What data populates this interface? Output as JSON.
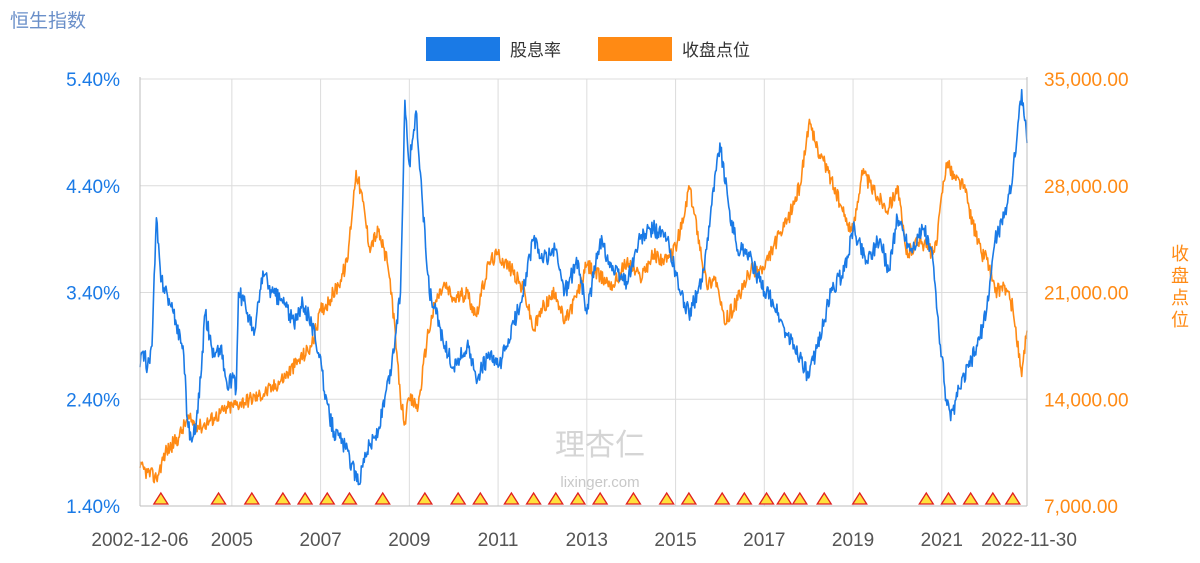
{
  "page_title": "恒生指数",
  "watermark": {
    "logo": "理杏仁",
    "site": "lixinger.com"
  },
  "colors": {
    "dividend": "#1a7ae6",
    "close": "#ff8a14",
    "grid": "#dcdcdc",
    "event_fill": "#ffe13c",
    "event_stroke": "#e02020"
  },
  "chart_data": {
    "type": "line",
    "x_tick_labels": [
      "2002-12-06",
      "2005",
      "2007",
      "2009",
      "2011",
      "2013",
      "2015",
      "2017",
      "2019",
      "2021",
      "2022-11-30"
    ],
    "x_tick_positions": [
      2002.93,
      2005,
      2007,
      2009,
      2011,
      2013,
      2015,
      2017,
      2019,
      2021,
      2022.92
    ],
    "x_range": [
      2002.93,
      2022.92
    ],
    "y_left": {
      "label": "股息率",
      "ticks": [
        "5.40%",
        "4.40%",
        "3.40%",
        "2.40%",
        "1.40%"
      ],
      "tick_values": [
        5.4,
        4.4,
        3.4,
        2.4,
        1.4
      ],
      "range": [
        1.4,
        5.4
      ]
    },
    "y_right": {
      "label": "收盘点位",
      "ticks": [
        "35,000.00",
        "28,000.00",
        "21,000.00",
        "14,000.00",
        "7,000.00"
      ],
      "tick_values": [
        35000,
        28000,
        21000,
        14000,
        7000
      ],
      "range": [
        7000,
        35000
      ]
    },
    "legend": {
      "placement": "top-center",
      "items": [
        "股息率",
        "收盘点位"
      ]
    },
    "series": [
      {
        "name": "股息率",
        "axis": "left",
        "points": [
          [
            2002.93,
            2.7
          ],
          [
            2003.0,
            2.85
          ],
          [
            2003.1,
            2.7
          ],
          [
            2003.2,
            2.9
          ],
          [
            2003.3,
            4.1
          ],
          [
            2003.4,
            3.5
          ],
          [
            2003.5,
            3.45
          ],
          [
            2003.6,
            3.3
          ],
          [
            2003.75,
            3.1
          ],
          [
            2003.9,
            2.9
          ],
          [
            2004.0,
            2.2
          ],
          [
            2004.1,
            2.0
          ],
          [
            2004.2,
            2.2
          ],
          [
            2004.3,
            2.6
          ],
          [
            2004.4,
            3.2
          ],
          [
            2004.5,
            3.0
          ],
          [
            2004.6,
            2.8
          ],
          [
            2004.75,
            2.9
          ],
          [
            2004.9,
            2.5
          ],
          [
            2005.0,
            2.6
          ],
          [
            2005.1,
            2.5
          ],
          [
            2005.15,
            3.4
          ],
          [
            2005.3,
            3.3
          ],
          [
            2005.5,
            3.0
          ],
          [
            2005.7,
            3.6
          ],
          [
            2005.9,
            3.4
          ],
          [
            2006.2,
            3.3
          ],
          [
            2006.4,
            3.1
          ],
          [
            2006.6,
            3.3
          ],
          [
            2006.8,
            3.1
          ],
          [
            2007.0,
            2.8
          ],
          [
            2007.1,
            2.4
          ],
          [
            2007.3,
            2.1
          ],
          [
            2007.5,
            2.0
          ],
          [
            2007.7,
            1.8
          ],
          [
            2007.85,
            1.6
          ],
          [
            2008.0,
            1.9
          ],
          [
            2008.3,
            2.1
          ],
          [
            2008.6,
            2.7
          ],
          [
            2008.8,
            3.4
          ],
          [
            2008.9,
            5.2
          ],
          [
            2009.0,
            4.6
          ],
          [
            2009.15,
            5.1
          ],
          [
            2009.3,
            4.2
          ],
          [
            2009.45,
            3.4
          ],
          [
            2009.6,
            3.2
          ],
          [
            2009.8,
            2.9
          ],
          [
            2010.0,
            2.7
          ],
          [
            2010.3,
            2.9
          ],
          [
            2010.5,
            2.6
          ],
          [
            2010.8,
            2.8
          ],
          [
            2011.0,
            2.7
          ],
          [
            2011.2,
            2.9
          ],
          [
            2011.5,
            3.3
          ],
          [
            2011.8,
            3.9
          ],
          [
            2012.0,
            3.7
          ],
          [
            2012.3,
            3.8
          ],
          [
            2012.5,
            3.4
          ],
          [
            2012.8,
            3.7
          ],
          [
            2013.0,
            3.2
          ],
          [
            2013.3,
            3.9
          ],
          [
            2013.6,
            3.6
          ],
          [
            2013.9,
            3.5
          ],
          [
            2014.2,
            3.9
          ],
          [
            2014.5,
            4.0
          ],
          [
            2014.8,
            3.9
          ],
          [
            2015.0,
            3.6
          ],
          [
            2015.1,
            3.4
          ],
          [
            2015.3,
            3.2
          ],
          [
            2015.6,
            3.5
          ],
          [
            2015.8,
            4.2
          ],
          [
            2016.0,
            4.8
          ],
          [
            2016.2,
            4.2
          ],
          [
            2016.4,
            3.8
          ],
          [
            2016.6,
            3.8
          ],
          [
            2016.9,
            3.5
          ],
          [
            2017.2,
            3.3
          ],
          [
            2017.5,
            3.0
          ],
          [
            2017.8,
            2.8
          ],
          [
            2018.0,
            2.6
          ],
          [
            2018.2,
            2.9
          ],
          [
            2018.5,
            3.4
          ],
          [
            2018.8,
            3.6
          ],
          [
            2019.0,
            4.0
          ],
          [
            2019.3,
            3.7
          ],
          [
            2019.6,
            3.9
          ],
          [
            2019.8,
            3.6
          ],
          [
            2020.0,
            4.1
          ],
          [
            2020.3,
            3.8
          ],
          [
            2020.6,
            4.0
          ],
          [
            2020.8,
            3.7
          ],
          [
            2020.9,
            3.2
          ],
          [
            2021.0,
            2.8
          ],
          [
            2021.1,
            2.4
          ],
          [
            2021.2,
            2.2
          ],
          [
            2021.4,
            2.5
          ],
          [
            2021.6,
            2.7
          ],
          [
            2021.8,
            2.9
          ],
          [
            2022.0,
            3.2
          ],
          [
            2022.2,
            3.9
          ],
          [
            2022.4,
            4.1
          ],
          [
            2022.6,
            4.5
          ],
          [
            2022.8,
            5.3
          ],
          [
            2022.92,
            4.8
          ]
        ]
      },
      {
        "name": "收盘点位",
        "axis": "right",
        "points": [
          [
            2002.93,
            9500
          ],
          [
            2003.1,
            9200
          ],
          [
            2003.3,
            8800
          ],
          [
            2003.5,
            10500
          ],
          [
            2003.8,
            11500
          ],
          [
            2004.0,
            12700
          ],
          [
            2004.3,
            12200
          ],
          [
            2004.6,
            12800
          ],
          [
            2004.9,
            13400
          ],
          [
            2005.2,
            13800
          ],
          [
            2005.6,
            14200
          ],
          [
            2005.9,
            14700
          ],
          [
            2006.2,
            15500
          ],
          [
            2006.5,
            16500
          ],
          [
            2006.8,
            17500
          ],
          [
            2007.0,
            19800
          ],
          [
            2007.2,
            20500
          ],
          [
            2007.4,
            21500
          ],
          [
            2007.6,
            23000
          ],
          [
            2007.8,
            29000
          ],
          [
            2007.95,
            27000
          ],
          [
            2008.1,
            24000
          ],
          [
            2008.3,
            25000
          ],
          [
            2008.5,
            23000
          ],
          [
            2008.6,
            21000
          ],
          [
            2008.8,
            14000
          ],
          [
            2008.9,
            12500
          ],
          [
            2009.0,
            14000
          ],
          [
            2009.2,
            13500
          ],
          [
            2009.4,
            18000
          ],
          [
            2009.6,
            20500
          ],
          [
            2009.8,
            21500
          ],
          [
            2010.0,
            20500
          ],
          [
            2010.3,
            21000
          ],
          [
            2010.5,
            19500
          ],
          [
            2010.8,
            23000
          ],
          [
            2011.0,
            23500
          ],
          [
            2011.3,
            22500
          ],
          [
            2011.6,
            21000
          ],
          [
            2011.8,
            18500
          ],
          [
            2012.0,
            20000
          ],
          [
            2012.3,
            21000
          ],
          [
            2012.5,
            19000
          ],
          [
            2012.8,
            21000
          ],
          [
            2013.0,
            22800
          ],
          [
            2013.3,
            22000
          ],
          [
            2013.6,
            21500
          ],
          [
            2013.9,
            23000
          ],
          [
            2014.2,
            22000
          ],
          [
            2014.5,
            23500
          ],
          [
            2014.8,
            23000
          ],
          [
            2015.0,
            24000
          ],
          [
            2015.2,
            26000
          ],
          [
            2015.3,
            28000
          ],
          [
            2015.5,
            25000
          ],
          [
            2015.7,
            21500
          ],
          [
            2015.9,
            22000
          ],
          [
            2016.1,
            19000
          ],
          [
            2016.4,
            20500
          ],
          [
            2016.7,
            22500
          ],
          [
            2017.0,
            22500
          ],
          [
            2017.2,
            24000
          ],
          [
            2017.5,
            25500
          ],
          [
            2017.8,
            28000
          ],
          [
            2018.0,
            32000
          ],
          [
            2018.2,
            30500
          ],
          [
            2018.5,
            28500
          ],
          [
            2018.8,
            26000
          ],
          [
            2019.0,
            25000
          ],
          [
            2019.2,
            29000
          ],
          [
            2019.5,
            27500
          ],
          [
            2019.8,
            26500
          ],
          [
            2020.0,
            28000
          ],
          [
            2020.2,
            23500
          ],
          [
            2020.5,
            24500
          ],
          [
            2020.8,
            23500
          ],
          [
            2020.9,
            24500
          ],
          [
            2021.0,
            27500
          ],
          [
            2021.1,
            29500
          ],
          [
            2021.3,
            28500
          ],
          [
            2021.5,
            28000
          ],
          [
            2021.7,
            25500
          ],
          [
            2021.9,
            23500
          ],
          [
            2022.0,
            23500
          ],
          [
            2022.2,
            21000
          ],
          [
            2022.4,
            21500
          ],
          [
            2022.6,
            20000
          ],
          [
            2022.8,
            15500
          ],
          [
            2022.92,
            18500
          ]
        ]
      }
    ],
    "event_markers_x": [
      2003.4,
      2004.7,
      2005.45,
      2006.15,
      2006.65,
      2007.15,
      2007.65,
      2008.4,
      2009.35,
      2010.1,
      2010.6,
      2011.3,
      2011.8,
      2012.3,
      2012.8,
      2013.3,
      2014.05,
      2014.8,
      2015.3,
      2016.05,
      2016.55,
      2017.05,
      2017.45,
      2017.8,
      2018.35,
      2019.15,
      2020.65,
      2021.15,
      2021.65,
      2022.15,
      2022.6
    ]
  }
}
